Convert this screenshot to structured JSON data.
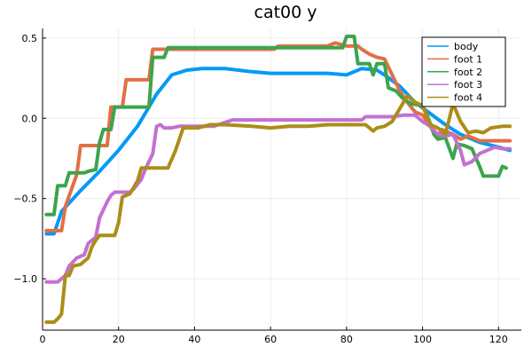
{
  "chart_data": {
    "type": "line",
    "title": "cat00 y",
    "xlabel": "",
    "ylabel": "",
    "xlim": [
      0,
      126
    ],
    "ylim": [
      -1.32,
      0.56
    ],
    "xticks": [
      0,
      20,
      40,
      60,
      80,
      100,
      120
    ],
    "yticks": [
      -1.0,
      -0.5,
      0.0,
      0.5
    ],
    "ytick_labels": [
      "−1.0",
      "−0.5",
      "0.0",
      "0.5"
    ],
    "grid": true,
    "legend_position": "top-right",
    "series": [
      {
        "name": "body",
        "color": "#009af9",
        "points": [
          [
            1,
            -0.72
          ],
          [
            3,
            -0.72
          ],
          [
            5,
            -0.58
          ],
          [
            10,
            -0.45
          ],
          [
            15,
            -0.33
          ],
          [
            20,
            -0.2
          ],
          [
            25,
            -0.05
          ],
          [
            30,
            0.15
          ],
          [
            34,
            0.27
          ],
          [
            38,
            0.3
          ],
          [
            42,
            0.31
          ],
          [
            48,
            0.31
          ],
          [
            55,
            0.29
          ],
          [
            60,
            0.28
          ],
          [
            70,
            0.28
          ],
          [
            75,
            0.28
          ],
          [
            80,
            0.27
          ],
          [
            84,
            0.31
          ],
          [
            88,
            0.3
          ],
          [
            90,
            0.27
          ],
          [
            94,
            0.2
          ],
          [
            98,
            0.1
          ],
          [
            102,
            0.03
          ],
          [
            106,
            -0.04
          ],
          [
            110,
            -0.1
          ],
          [
            115,
            -0.15
          ],
          [
            120,
            -0.18
          ],
          [
            123,
            -0.2
          ]
        ]
      },
      {
        "name": "foot 1",
        "color": "#e26f46",
        "points": [
          [
            1,
            -0.7
          ],
          [
            5,
            -0.7
          ],
          [
            6,
            -0.55
          ],
          [
            9,
            -0.35
          ],
          [
            10,
            -0.17
          ],
          [
            17,
            -0.17
          ],
          [
            18,
            0.07
          ],
          [
            21,
            0.07
          ],
          [
            22,
            0.24
          ],
          [
            28,
            0.24
          ],
          [
            29,
            0.43
          ],
          [
            61,
            0.43
          ],
          [
            62,
            0.45
          ],
          [
            75,
            0.45
          ],
          [
            77,
            0.47
          ],
          [
            80,
            0.45
          ],
          [
            83,
            0.45
          ],
          [
            84,
            0.43
          ],
          [
            86,
            0.4
          ],
          [
            88,
            0.38
          ],
          [
            90,
            0.37
          ],
          [
            92,
            0.27
          ],
          [
            94,
            0.17
          ],
          [
            96,
            0.1
          ],
          [
            98,
            0.04
          ],
          [
            100,
            0.02
          ],
          [
            102,
            -0.05
          ],
          [
            104,
            -0.12
          ],
          [
            105,
            -0.07
          ],
          [
            108,
            -0.1
          ],
          [
            110,
            -0.13
          ],
          [
            112,
            -0.11
          ],
          [
            115,
            -0.14
          ],
          [
            123,
            -0.14
          ]
        ]
      },
      {
        "name": "foot 2",
        "color": "#3da44d",
        "points": [
          [
            1,
            -0.6
          ],
          [
            3,
            -0.6
          ],
          [
            4,
            -0.42
          ],
          [
            6,
            -0.42
          ],
          [
            7,
            -0.34
          ],
          [
            11,
            -0.34
          ],
          [
            12,
            -0.33
          ],
          [
            14,
            -0.32
          ],
          [
            15,
            -0.15
          ],
          [
            16,
            -0.07
          ],
          [
            18,
            -0.07
          ],
          [
            19,
            0.07
          ],
          [
            28,
            0.07
          ],
          [
            29,
            0.38
          ],
          [
            32,
            0.38
          ],
          [
            33,
            0.44
          ],
          [
            79,
            0.44
          ],
          [
            80,
            0.51
          ],
          [
            82,
            0.51
          ],
          [
            83,
            0.34
          ],
          [
            86,
            0.34
          ],
          [
            87,
            0.27
          ],
          [
            88,
            0.34
          ],
          [
            90,
            0.34
          ],
          [
            91,
            0.19
          ],
          [
            93,
            0.17
          ],
          [
            95,
            0.12
          ],
          [
            97,
            0.09
          ],
          [
            100,
            0.08
          ],
          [
            101,
            0.03
          ],
          [
            102,
            -0.03
          ],
          [
            103,
            -0.1
          ],
          [
            104,
            -0.13
          ],
          [
            106,
            -0.12
          ],
          [
            108,
            -0.25
          ],
          [
            109,
            -0.16
          ],
          [
            111,
            -0.17
          ],
          [
            113,
            -0.19
          ],
          [
            115,
            -0.3
          ],
          [
            116,
            -0.36
          ],
          [
            120,
            -0.36
          ],
          [
            121,
            -0.3
          ],
          [
            122,
            -0.31
          ]
        ]
      },
      {
        "name": "foot 3",
        "color": "#c271d2",
        "points": [
          [
            1,
            -1.02
          ],
          [
            4,
            -1.02
          ],
          [
            6,
            -0.98
          ],
          [
            7,
            -0.92
          ],
          [
            9,
            -0.87
          ],
          [
            11,
            -0.85
          ],
          [
            12,
            -0.78
          ],
          [
            14,
            -0.74
          ],
          [
            15,
            -0.62
          ],
          [
            17,
            -0.52
          ],
          [
            18,
            -0.48
          ],
          [
            19,
            -0.46
          ],
          [
            23,
            -0.46
          ],
          [
            24,
            -0.44
          ],
          [
            26,
            -0.38
          ],
          [
            27,
            -0.32
          ],
          [
            29,
            -0.22
          ],
          [
            30,
            -0.05
          ],
          [
            31,
            -0.04
          ],
          [
            32,
            -0.06
          ],
          [
            34,
            -0.06
          ],
          [
            36,
            -0.05
          ],
          [
            45,
            -0.05
          ],
          [
            50,
            -0.01
          ],
          [
            60,
            -0.01
          ],
          [
            70,
            -0.01
          ],
          [
            84,
            -0.01
          ],
          [
            85,
            0.01
          ],
          [
            92,
            0.01
          ],
          [
            95,
            0.02
          ],
          [
            98,
            0.02
          ],
          [
            100,
            -0.02
          ],
          [
            102,
            -0.05
          ],
          [
            104,
            -0.1
          ],
          [
            106,
            -0.11
          ],
          [
            108,
            -0.1
          ],
          [
            110,
            -0.2
          ],
          [
            111,
            -0.29
          ],
          [
            113,
            -0.27
          ],
          [
            115,
            -0.22
          ],
          [
            117,
            -0.2
          ],
          [
            119,
            -0.18
          ],
          [
            121,
            -0.19
          ],
          [
            123,
            -0.19
          ]
        ]
      },
      {
        "name": "foot 4",
        "color": "#ac8d18",
        "points": [
          [
            1,
            -1.27
          ],
          [
            3,
            -1.27
          ],
          [
            4,
            -1.25
          ],
          [
            5,
            -1.22
          ],
          [
            6,
            -0.98
          ],
          [
            7,
            -0.98
          ],
          [
            8,
            -0.92
          ],
          [
            10,
            -0.91
          ],
          [
            12,
            -0.87
          ],
          [
            13,
            -0.8
          ],
          [
            14,
            -0.76
          ],
          [
            15,
            -0.73
          ],
          [
            19,
            -0.73
          ],
          [
            20,
            -0.65
          ],
          [
            21,
            -0.49
          ],
          [
            23,
            -0.47
          ],
          [
            24,
            -0.43
          ],
          [
            25,
            -0.39
          ],
          [
            26,
            -0.31
          ],
          [
            33,
            -0.31
          ],
          [
            35,
            -0.2
          ],
          [
            37,
            -0.06
          ],
          [
            41,
            -0.06
          ],
          [
            44,
            -0.04
          ],
          [
            48,
            -0.04
          ],
          [
            55,
            -0.05
          ],
          [
            60,
            -0.06
          ],
          [
            65,
            -0.05
          ],
          [
            70,
            -0.05
          ],
          [
            75,
            -0.04
          ],
          [
            80,
            -0.04
          ],
          [
            85,
            -0.04
          ],
          [
            87,
            -0.08
          ],
          [
            88,
            -0.06
          ],
          [
            90,
            -0.05
          ],
          [
            92,
            -0.02
          ],
          [
            94,
            0.06
          ],
          [
            96,
            0.14
          ],
          [
            98,
            0.1
          ],
          [
            100,
            0.08
          ],
          [
            102,
            -0.04
          ],
          [
            104,
            -0.06
          ],
          [
            106,
            -0.1
          ],
          [
            108,
            0.09
          ],
          [
            110,
            -0.02
          ],
          [
            112,
            -0.09
          ],
          [
            114,
            -0.08
          ],
          [
            116,
            -0.09
          ],
          [
            118,
            -0.06
          ],
          [
            121,
            -0.05
          ],
          [
            123,
            -0.05
          ]
        ]
      }
    ]
  }
}
